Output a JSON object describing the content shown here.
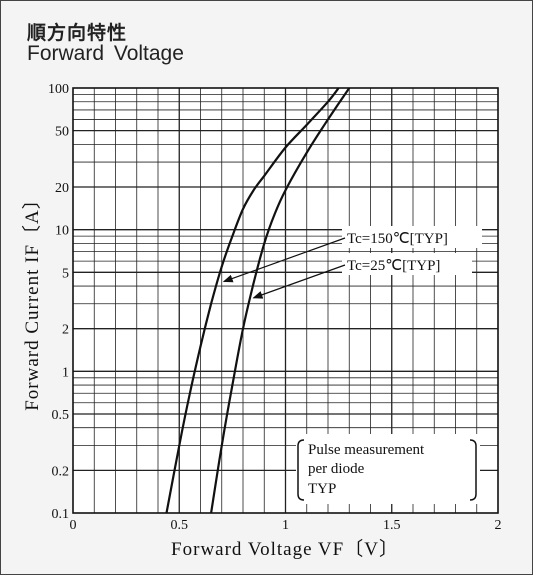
{
  "header": {
    "title_jp": "順方向特性",
    "title_en": "Forward  Voltage"
  },
  "chart_data": {
    "type": "line",
    "title": "Forward Voltage",
    "xlabel": "Forward Voltage VF〔V〕",
    "ylabel": "Forward Current IF〔A〕",
    "xlim": [
      0,
      2
    ],
    "ylim": [
      0.1,
      100
    ],
    "yscale": "log",
    "grid": true,
    "x_ticks": [
      0,
      0.5,
      1,
      1.5,
      2
    ],
    "x_tick_labels": [
      "0",
      "0.5",
      "1",
      "1.5",
      "2"
    ],
    "y_ticks": [
      0.1,
      0.2,
      0.5,
      1,
      2,
      5,
      10,
      20,
      50,
      100
    ],
    "y_tick_labels": [
      "0.1",
      "0.2",
      "0.5",
      "1",
      "2",
      "5",
      "10",
      "20",
      "50",
      "100"
    ],
    "series": [
      {
        "name": "Tc=150℃[TYP]",
        "x": [
          0.44,
          0.5,
          0.55,
          0.6,
          0.65,
          0.7,
          0.75,
          0.8,
          0.85,
          0.9,
          1.0,
          1.1,
          1.2,
          1.25
        ],
        "y": [
          0.1,
          0.3,
          0.7,
          1.5,
          3.0,
          5.5,
          9.0,
          14,
          19,
          24,
          38,
          55,
          80,
          100
        ]
      },
      {
        "name": "Tc=25℃[TYP]",
        "x": [
          0.65,
          0.7,
          0.75,
          0.8,
          0.85,
          0.9,
          0.95,
          1.0,
          1.1,
          1.2,
          1.3
        ],
        "y": [
          0.1,
          0.3,
          0.8,
          2.0,
          4.2,
          8.0,
          13,
          19,
          35,
          60,
          100
        ]
      }
    ],
    "annotations": [
      {
        "text": "Tc=150℃[TYP]",
        "target_series": 0
      },
      {
        "text": "Tc=25℃[TYP]",
        "target_series": 1
      }
    ],
    "note": [
      "Pulse measurement",
      "per diode",
      "TYP"
    ]
  }
}
